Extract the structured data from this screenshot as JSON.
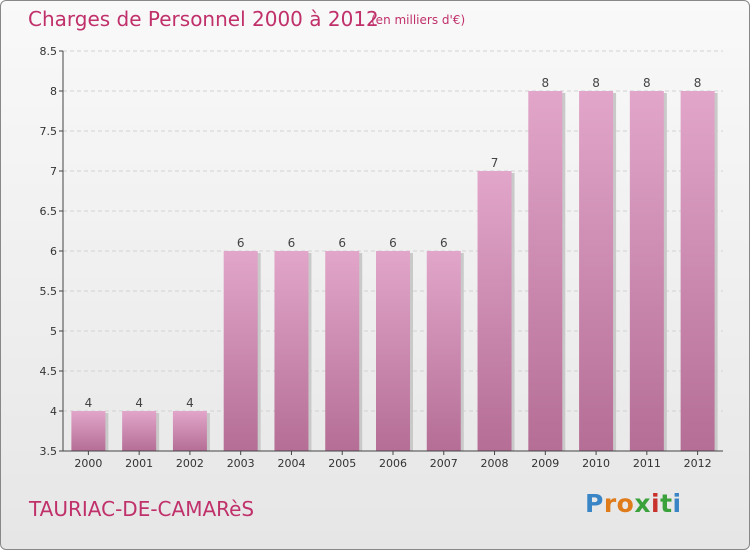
{
  "header": {
    "title": "Charges de Personnel 2000 à 2012",
    "subtitle": "(en milliers d'€)"
  },
  "footer": {
    "town": "TAURIAC-DE-CAMARèS",
    "logo_text": "Proxiti"
  },
  "colors": {
    "bar_top": "#e2a6ca",
    "bar_bottom": "#b56e96",
    "accent": "#c0306a"
  },
  "chart_data": {
    "type": "bar",
    "categories": [
      "2000",
      "2001",
      "2002",
      "2003",
      "2004",
      "2005",
      "2006",
      "2007",
      "2008",
      "2009",
      "2010",
      "2011",
      "2012"
    ],
    "values": [
      4,
      4,
      4,
      6,
      6,
      6,
      6,
      6,
      7,
      8,
      8,
      8,
      8
    ],
    "data_labels": [
      "4",
      "4",
      "4",
      "6",
      "6",
      "6",
      "6",
      "6",
      "7",
      "8",
      "8",
      "8",
      "8"
    ],
    "title": "Charges de Personnel 2000 à 2012",
    "ylim": [
      3.5,
      8.5
    ],
    "yticks": [
      3.5,
      4,
      4.5,
      5,
      5.5,
      6,
      6.5,
      7,
      7.5,
      8,
      8.5
    ],
    "ytick_labels": [
      "3.5",
      "4",
      "4.5",
      "5",
      "5.5",
      "6",
      "6.5",
      "7",
      "7.5",
      "8",
      "8.5"
    ],
    "grid": true
  }
}
